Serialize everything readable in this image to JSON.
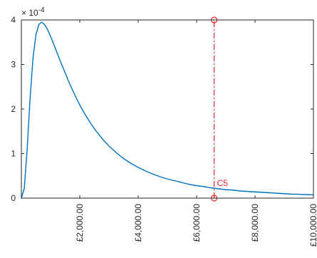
{
  "chart_data": {
    "type": "line",
    "title": "",
    "xlabel": "",
    "ylabel": "",
    "y_multiplier_label": "× 10^-4",
    "y_multiplier_base": "× 10",
    "y_multiplier_exp": "-4",
    "xlim": [
      0,
      10000
    ],
    "ylim": [
      0,
      4
    ],
    "x_ticks": [
      2000,
      4000,
      6000,
      8000,
      10000
    ],
    "x_tick_labels": [
      "£2,000.00",
      "£4,000.00",
      "£6,000.00",
      "£8,000.00",
      "£10,000.00"
    ],
    "y_ticks": [
      0,
      1,
      2,
      3,
      4
    ],
    "y_tick_labels": [
      "0",
      "1",
      "2",
      "3",
      "4"
    ],
    "grid": false,
    "series": [
      {
        "color": "#0072bd",
        "x": [
          0,
          100,
          200,
          300,
          400,
          500,
          600,
          700,
          800,
          900,
          1000,
          1100,
          1200,
          1300,
          1400,
          1500,
          1600,
          1700,
          1800,
          1900,
          2000,
          2200,
          2400,
          2600,
          2800,
          3000,
          3250,
          3500,
          3750,
          4000,
          4250,
          4500,
          4750,
          5000,
          5250,
          5500,
          5750,
          6000,
          6250,
          6500,
          6750,
          7000,
          7250,
          7500,
          7750,
          8000,
          8250,
          8500,
          8750,
          9000,
          9250,
          9500,
          9750,
          10000
        ],
        "y": [
          0,
          0.22,
          1.12,
          2.26,
          3.16,
          3.67,
          3.9,
          3.95,
          3.89,
          3.78,
          3.63,
          3.47,
          3.3,
          3.13,
          2.97,
          2.81,
          2.65,
          2.5,
          2.36,
          2.22,
          2.09,
          1.86,
          1.65,
          1.47,
          1.31,
          1.17,
          1.02,
          0.89,
          0.78,
          0.69,
          0.61,
          0.54,
          0.48,
          0.43,
          0.39,
          0.35,
          0.31,
          0.28,
          0.26,
          0.23,
          0.21,
          0.19,
          0.18,
          0.16,
          0.15,
          0.14,
          0.13,
          0.12,
          0.11,
          0.1,
          0.09,
          0.087,
          0.08,
          0.075
        ]
      }
    ],
    "annotations": [
      {
        "label": "C5",
        "x": 6600,
        "y_from": 0,
        "y_to": 4,
        "color": "#e8262b",
        "style": "dash-dot",
        "markers": "circle"
      }
    ]
  }
}
